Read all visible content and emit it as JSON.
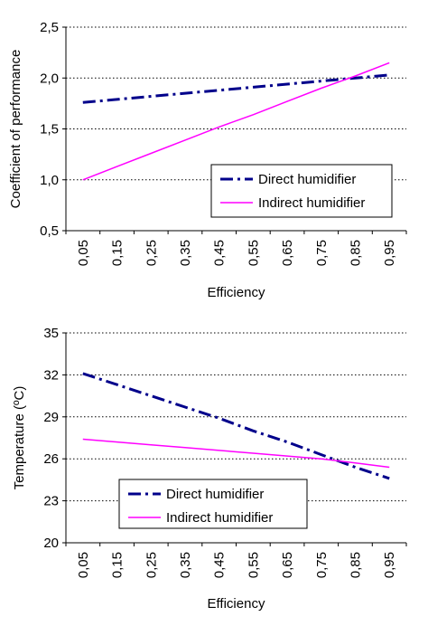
{
  "chart_data": [
    {
      "type": "line",
      "xlabel": "Efficiency",
      "ylabel": "Coefficient of performance",
      "x": [
        "0,05",
        "0,15",
        "0,25",
        "0,35",
        "0,45",
        "0,55",
        "0,65",
        "0,75",
        "0,85",
        "0,95"
      ],
      "ylim": [
        0.5,
        2.5
      ],
      "yticks": [
        "0,5",
        "1,0",
        "1,5",
        "2,0",
        "2,5"
      ],
      "grid": "horizontal dotted",
      "legend_position": "bottom-right",
      "series": [
        {
          "name": "Direct humidifier",
          "style": "dash-dot",
          "color": "#00008B",
          "values": [
            1.76,
            1.79,
            1.82,
            1.85,
            1.88,
            1.91,
            1.94,
            1.97,
            2.0,
            2.03
          ]
        },
        {
          "name": "Indirect humidifier",
          "style": "solid",
          "color": "#FF00FF",
          "values": [
            1.0,
            1.13,
            1.26,
            1.39,
            1.52,
            1.64,
            1.77,
            1.9,
            2.02,
            2.15
          ]
        }
      ]
    },
    {
      "type": "line",
      "xlabel": "Efficiency",
      "ylabel": "Temperature (ºC)",
      "x": [
        "0,05",
        "0,15",
        "0,25",
        "0,35",
        "0,45",
        "0,55",
        "0,65",
        "0,75",
        "0,85",
        "0,95"
      ],
      "ylim": [
        20,
        35
      ],
      "yticks": [
        "20",
        "23",
        "26",
        "29",
        "32",
        "35"
      ],
      "grid": "horizontal dotted",
      "legend_position": "bottom-center",
      "series": [
        {
          "name": "Direct humidifier",
          "style": "dash-dot",
          "color": "#00008B",
          "values": [
            32.1,
            31.3,
            30.5,
            29.7,
            28.9,
            28.0,
            27.2,
            26.3,
            25.4,
            24.6
          ]
        },
        {
          "name": "Indirect humidifier",
          "style": "solid",
          "color": "#FF00FF",
          "values": [
            27.4,
            27.2,
            27.0,
            26.8,
            26.6,
            26.4,
            26.2,
            26.0,
            25.7,
            25.4
          ]
        }
      ]
    }
  ]
}
